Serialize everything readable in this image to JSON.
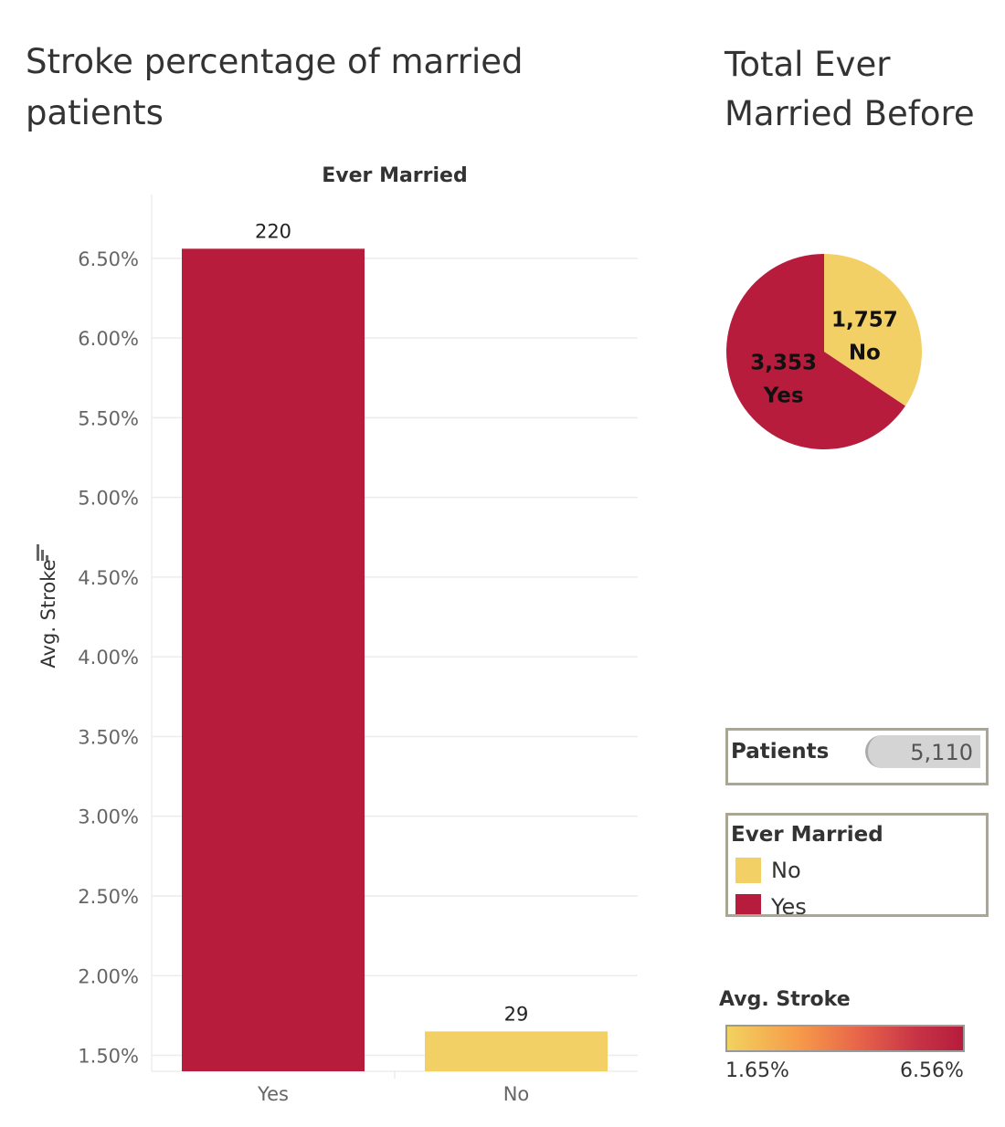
{
  "bar_chart": {
    "title": "Stroke percentage of married patients",
    "header": "Ever Married",
    "ylabel": "Avg. Stroke"
  },
  "pie_chart": {
    "title": "Total Ever Married Before"
  },
  "patients": {
    "label": "Patients",
    "value": "5,110"
  },
  "legend": {
    "title": "Ever Married",
    "items": [
      {
        "label": "No",
        "color": "#f2d066"
      },
      {
        "label": "Yes",
        "color": "#b71c3c"
      }
    ]
  },
  "color_scale": {
    "title": "Avg. Stroke",
    "min_label": "1.65%",
    "max_label": "6.56%"
  },
  "chart_data": [
    {
      "type": "bar",
      "title": "Stroke percentage of married patients",
      "xlabel": "Ever Married",
      "ylabel": "Avg. Stroke",
      "categories": [
        "Yes",
        "No"
      ],
      "values": [
        6.56,
        1.65
      ],
      "data_labels": [
        "220",
        "29"
      ],
      "colors": [
        "#b71c3c",
        "#f2d066"
      ],
      "ylim": [
        1.4,
        6.9
      ],
      "yticks": [
        1.5,
        2.0,
        2.5,
        3.0,
        3.5,
        4.0,
        4.5,
        5.0,
        5.5,
        6.0,
        6.5
      ],
      "ytick_labels": [
        "1.50%",
        "2.00%",
        "2.50%",
        "3.00%",
        "3.50%",
        "4.00%",
        "4.50%",
        "5.00%",
        "5.50%",
        "6.00%",
        "6.50%"
      ],
      "grid": true
    },
    {
      "type": "pie",
      "title": "Total Ever Married Before",
      "slices": [
        {
          "label": "No",
          "value": 1757,
          "value_label": "1,757",
          "color": "#f2d066"
        },
        {
          "label": "Yes",
          "value": 3353,
          "value_label": "3,353",
          "color": "#b71c3c"
        }
      ]
    }
  ]
}
